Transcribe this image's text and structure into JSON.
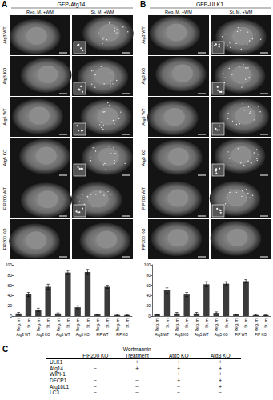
{
  "panels": [
    {
      "label": "A",
      "title": "GFP-Atg14",
      "columns": [
        "Reg. M. +WM",
        "St. M. +WM"
      ],
      "rows": [
        "Atg3 WT",
        "Atg3 KO",
        "Atg5 WT",
        "Atg5 KO",
        "FIP200 WT",
        "FIP200 KO"
      ]
    },
    {
      "label": "B",
      "title": "GFP-ULK1",
      "columns": [
        "Reg. M. +WM",
        "St. M. +WM"
      ],
      "rows": [
        "Atg3 WT",
        "Atg3 KO",
        "Atg5 WT",
        "Atg5 KO",
        "FIP200 WT",
        "FIP200 KO"
      ]
    }
  ],
  "chart_data": [
    {
      "type": "bar",
      "categories": [
        "Reg. m.",
        "St. m.",
        "Reg. m.",
        "St. m.",
        "Reg. m.",
        "St. m.",
        "Reg. m.",
        "St. m.",
        "Reg. m.",
        "St. m.",
        "Reg. m.",
        "St. m."
      ],
      "groups": [
        "Atg3 WT",
        "Atg3 KO",
        "Atg5 WT",
        "Atg5 KO",
        "FIP WT",
        "FIP KO"
      ],
      "values": [
        5,
        42,
        12,
        57,
        5,
        85,
        17,
        86,
        3,
        57,
        2,
        2
      ],
      "errors": [
        2,
        4,
        3,
        5,
        1,
        4,
        3,
        5,
        1,
        3,
        1,
        1
      ],
      "color": "#3a3a3a",
      "ylim": [
        0,
        100
      ],
      "yticks": [
        0,
        20,
        40,
        60,
        80,
        100
      ],
      "grid": false
    },
    {
      "type": "bar",
      "categories": [
        "Reg. m.",
        "St. m.",
        "Reg. m.",
        "St. m.",
        "Reg. m.",
        "St. m.",
        "Reg. m.",
        "St. m.",
        "Reg. m.",
        "St. m.",
        "Reg. m.",
        "St. m."
      ],
      "groups": [
        "Atg3 WT",
        "Atg3 KO",
        "Atg5 WT",
        "Atg5 KO",
        "FIP WT",
        "FIP KO"
      ],
      "values": [
        3,
        50,
        5,
        42,
        5,
        62,
        6,
        63,
        3,
        68,
        2,
        2
      ],
      "errors": [
        1,
        5,
        2,
        4,
        2,
        5,
        2,
        4,
        1,
        3,
        1,
        1
      ],
      "color": "#3a3a3a",
      "ylim": [
        0,
        100
      ],
      "yticks": [
        0,
        20,
        40,
        60,
        80,
        100
      ],
      "grid": false
    }
  ],
  "table": {
    "label": "C",
    "header": [
      "FIP200 KO",
      "Wortmannin Treatment",
      "Atg5 KO",
      "Atg3 KO"
    ],
    "rows": [
      [
        "ULK1",
        "−",
        "+",
        "+",
        "+"
      ],
      [
        "Atg14",
        "−",
        "+",
        "+",
        "+"
      ],
      [
        "WIPI-1",
        "−",
        "−",
        "+",
        "+"
      ],
      [
        "DFCP1",
        "−",
        "−",
        "+",
        "+"
      ],
      [
        "Atg16L1",
        "−",
        "−",
        "−",
        "+"
      ],
      [
        "LC3",
        "−",
        "−",
        "−",
        "−"
      ]
    ]
  }
}
